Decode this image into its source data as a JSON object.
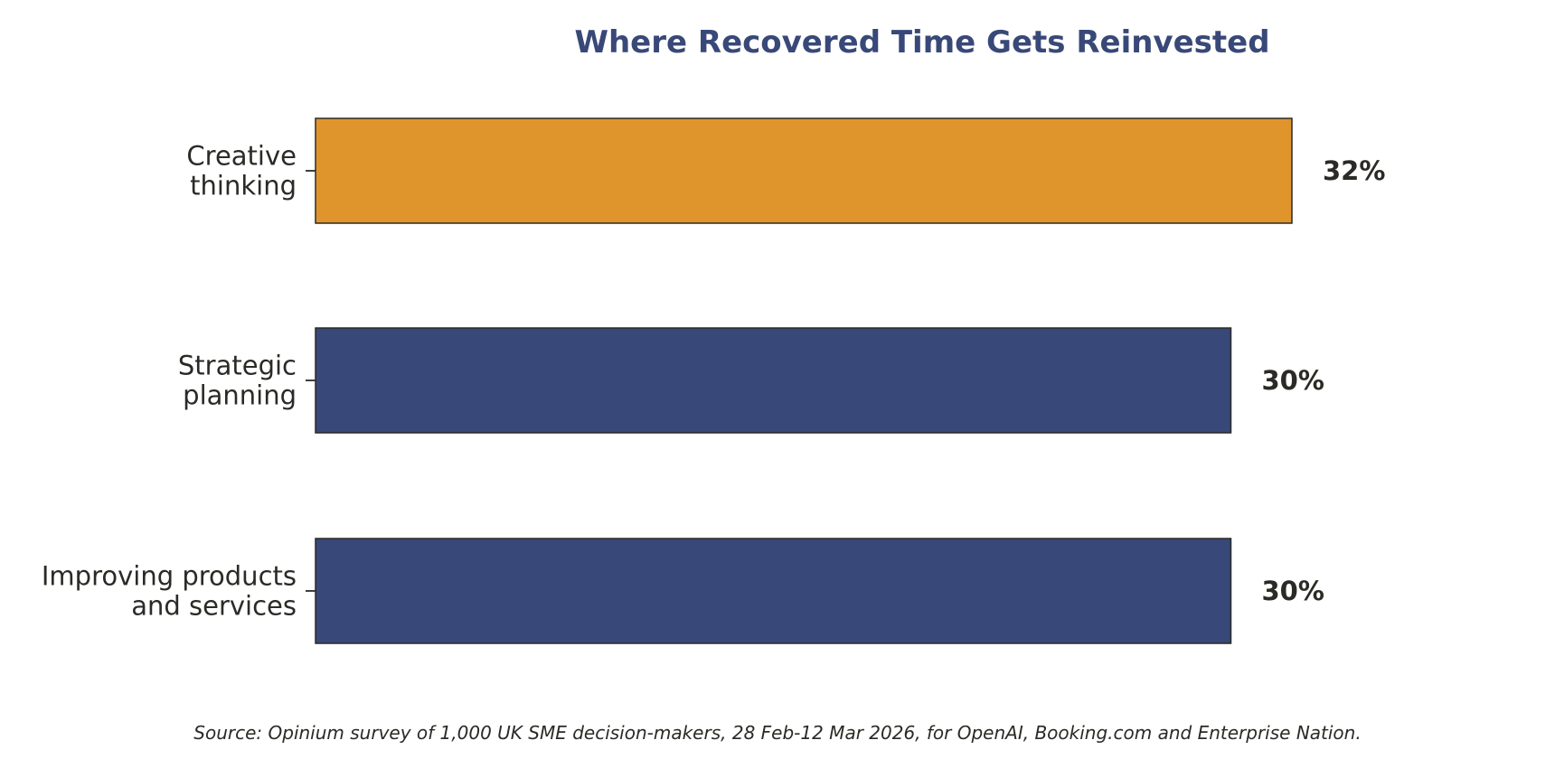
{
  "chart_data": {
    "type": "bar",
    "orientation": "horizontal",
    "title": "Where Recovered Time Gets Reinvested",
    "categories": [
      [
        "Creative",
        "thinking"
      ],
      [
        "Strategic",
        "planning"
      ],
      [
        "Improving products",
        "and services"
      ]
    ],
    "values": [
      32,
      30,
      30
    ],
    "value_labels": [
      "32%",
      "30%",
      "30%"
    ],
    "xlabel": "",
    "ylabel": "",
    "grid": false,
    "legend": "none",
    "source": "Source: Opinium survey of 1,000 UK SME decision-makers, 28 Feb-12 Mar 2026, for OpenAI, Booking.com and Enterprise Nation."
  },
  "colors": {
    "title": "#384878",
    "highlight_bar": "#e0952c",
    "default_bar": "#384878",
    "bar_border": "#2b2a26",
    "text": "#2b2a26"
  },
  "highlight_index": 0
}
